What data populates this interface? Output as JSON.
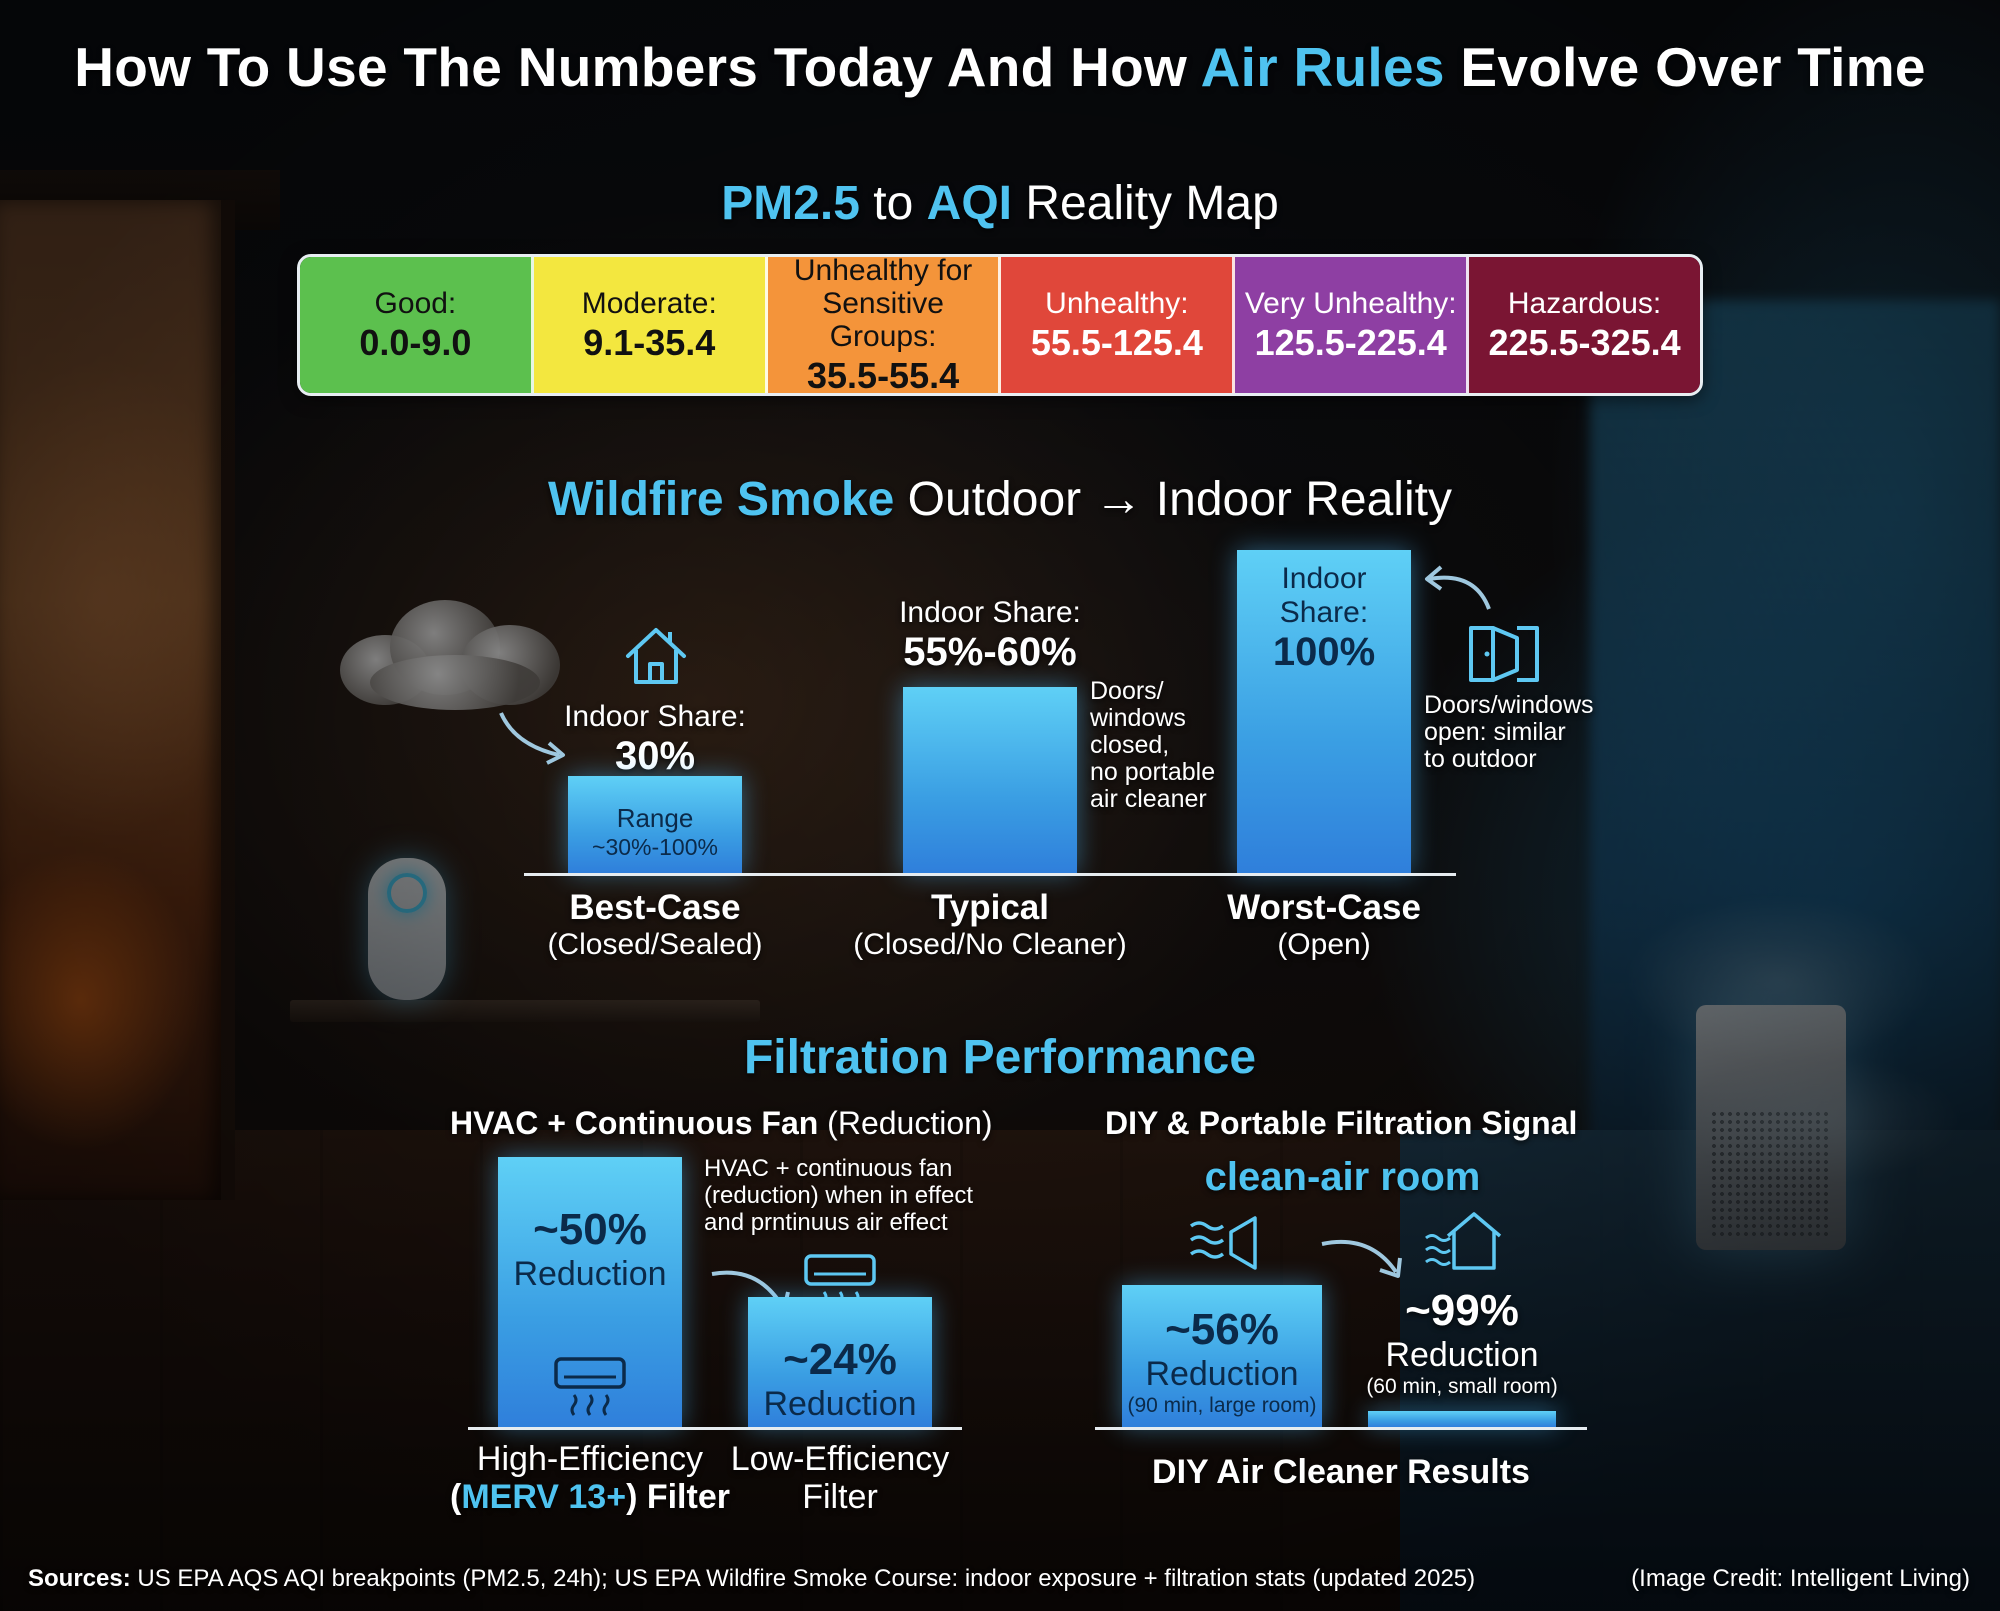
{
  "title": {
    "part1": "How To Use The Numbers Today And How ",
    "accent": "Air Rules",
    "part2": " Evolve Over Time"
  },
  "aqi_map": {
    "title_accent1": "PM2.5",
    "title_mid": " to ",
    "title_accent2": "AQI",
    "title_end": " Reality Map",
    "categories": [
      {
        "label": "Good:",
        "range": "0.0-9.0",
        "color": "#5cc04e",
        "text_color": "#111111"
      },
      {
        "label": "Moderate:",
        "range": "9.1-35.4",
        "color": "#f3e73f",
        "text_color": "#111111"
      },
      {
        "label": "Unhealthy for Sensitive Groups:",
        "range": "35.5-55.4",
        "color": "#f4943a",
        "text_color": "#111111"
      },
      {
        "label": "Unhealthy:",
        "range": "55.5-125.4",
        "color": "#e0473a",
        "text_color": "#ffffff"
      },
      {
        "label": "Very Unhealthy:",
        "range": "125.5-225.4",
        "color": "#8e3fa3",
        "text_color": "#ffffff"
      },
      {
        "label": "Hazardous:",
        "range": "225.5-325.4",
        "color": "#7a1533",
        "text_color": "#ffffff"
      }
    ]
  },
  "wildfire": {
    "title_accent": "Wildfire Smoke",
    "title_rest": " Outdoor → Indoor Reality",
    "share_label": "Indoor Share:",
    "bars": [
      {
        "name": "Best-Case",
        "sub": "(Closed/Sealed)",
        "share": "30%",
        "value": 30,
        "range_label": "Range",
        "range_value": "~30%-100%"
      },
      {
        "name": "Typical",
        "sub": "(Closed/No Cleaner)",
        "share": "55%-60%",
        "value": 57.5
      },
      {
        "name": "Worst-Case",
        "sub": "(Open)",
        "share": "100%",
        "value": 100
      }
    ],
    "typical_note": [
      "Doors/",
      "windows",
      "closed,",
      "no portable",
      "air cleaner"
    ],
    "worst_note": [
      "Doors/windows",
      "open: similar",
      "to outdoor"
    ]
  },
  "filtration": {
    "title": "Filtration Performance",
    "hvac": {
      "head_bold": "HVAC + Continuous Fan",
      "head_rest": " (Reduction)",
      "note": [
        "HVAC + continuous fan",
        "(reduction) when in effect",
        "and prntinuus air effect"
      ],
      "bars": [
        {
          "pct": "~50%",
          "value": 50,
          "label": "Reduction",
          "cat_line1": "High-Efficiency",
          "cat_accent": "MERV 13+",
          "cat_open": "(",
          "cat_close": ") Filter"
        },
        {
          "pct": "~24%",
          "value": 24,
          "label": "Reduction",
          "cat_line1": "Low-Efficiency",
          "cat_line2": "Filter"
        }
      ]
    },
    "diy": {
      "head": "DIY & Portable Filtration Signal",
      "subhead": "clean-air room",
      "bars": [
        {
          "pct": "~56%",
          "value": 56,
          "label": "Reduction",
          "detail": "(90 min, large room)"
        },
        {
          "pct": "~99%",
          "value": 99,
          "label": "Reduction",
          "detail": "(60 min, small room)"
        }
      ],
      "caption": "DIY Air Cleaner Results"
    }
  },
  "footer": {
    "sources_label": "Sources:",
    "sources_text": " US EPA AQS AQI breakpoints (PM2.5, 24h); US EPA Wildfire Smoke Course: indoor exposure + filtration stats (updated 2025)",
    "credit": "(Image Credit: Intelligent Living)"
  },
  "colors": {
    "accent": "#4fc3f0",
    "bar_top": "#5fd0f6",
    "bar_bottom": "#2f7fdb"
  },
  "icons": [
    "house-icon",
    "door-icon",
    "cloud-icon",
    "arrow-icon",
    "air-conditioner-icon",
    "clean-room-house-icon",
    "fan-filter-icon"
  ]
}
